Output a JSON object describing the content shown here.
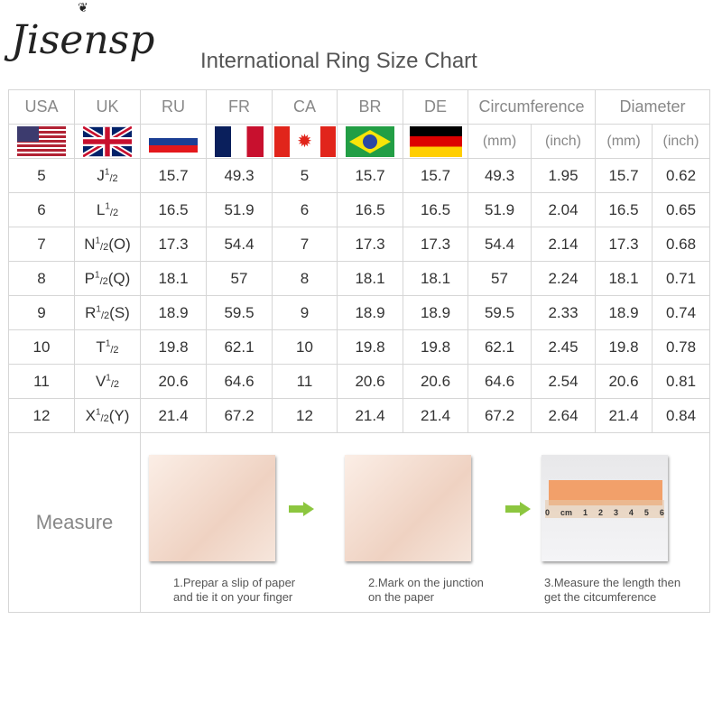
{
  "brand": "Jisensp",
  "title": "International Ring Size Chart",
  "headers": [
    "USA",
    "UK",
    "RU",
    "FR",
    "CA",
    "BR",
    "DE",
    "Circumference",
    "Diameter"
  ],
  "units": [
    "(mm)",
    "(inch)",
    "(mm)",
    "(inch)"
  ],
  "flags": [
    "usa-flag",
    "uk-flag",
    "russia-flag",
    "france-flag",
    "canada-flag",
    "brazil-flag",
    "germany-flag"
  ],
  "rows": [
    {
      "usa": "5",
      "uk": "J",
      "uk_sup": "1",
      "uk_sub": "/2",
      "uk_extra": "",
      "ru": "15.7",
      "fr": "49.3",
      "ca": "5",
      "br": "15.7",
      "de": "15.7",
      "circ_mm": "49.3",
      "circ_in": "1.95",
      "dia_mm": "15.7",
      "dia_in": "0.62"
    },
    {
      "usa": "6",
      "uk": "L",
      "uk_sup": "1",
      "uk_sub": "/2",
      "uk_extra": "",
      "ru": "16.5",
      "fr": "51.9",
      "ca": "6",
      "br": "16.5",
      "de": "16.5",
      "circ_mm": "51.9",
      "circ_in": "2.04",
      "dia_mm": "16.5",
      "dia_in": "0.65"
    },
    {
      "usa": "7",
      "uk": "N",
      "uk_sup": "1",
      "uk_sub": "/2",
      "uk_extra": "(O)",
      "ru": "17.3",
      "fr": "54.4",
      "ca": "7",
      "br": "17.3",
      "de": "17.3",
      "circ_mm": "54.4",
      "circ_in": "2.14",
      "dia_mm": "17.3",
      "dia_in": "0.68"
    },
    {
      "usa": "8",
      "uk": "P",
      "uk_sup": "1",
      "uk_sub": "/2",
      "uk_extra": "(Q)",
      "ru": "18.1",
      "fr": "57",
      "ca": "8",
      "br": "18.1",
      "de": "18.1",
      "circ_mm": "57",
      "circ_in": "2.24",
      "dia_mm": "18.1",
      "dia_in": "0.71"
    },
    {
      "usa": "9",
      "uk": "R",
      "uk_sup": "1",
      "uk_sub": "/2",
      "uk_extra": "(S)",
      "ru": "18.9",
      "fr": "59.5",
      "ca": "9",
      "br": "18.9",
      "de": "18.9",
      "circ_mm": "59.5",
      "circ_in": "2.33",
      "dia_mm": "18.9",
      "dia_in": "0.74"
    },
    {
      "usa": "10",
      "uk": "T",
      "uk_sup": "1",
      "uk_sub": "/2",
      "uk_extra": "",
      "ru": "19.8",
      "fr": "62.1",
      "ca": "10",
      "br": "19.8",
      "de": "19.8",
      "circ_mm": "62.1",
      "circ_in": "2.45",
      "dia_mm": "19.8",
      "dia_in": "0.78"
    },
    {
      "usa": "11",
      "uk": "V",
      "uk_sup": "1",
      "uk_sub": "/2",
      "uk_extra": "",
      "ru": "20.6",
      "fr": "64.6",
      "ca": "11",
      "br": "20.6",
      "de": "20.6",
      "circ_mm": "64.6",
      "circ_in": "2.54",
      "dia_mm": "20.6",
      "dia_in": "0.81"
    },
    {
      "usa": "12",
      "uk": "X",
      "uk_sup": "1",
      "uk_sub": "/2",
      "uk_extra": "(Y)",
      "ru": "21.4",
      "fr": "67.2",
      "ca": "12",
      "br": "21.4",
      "de": "21.4",
      "circ_mm": "67.2",
      "circ_in": "2.64",
      "dia_mm": "21.4",
      "dia_in": "0.84"
    }
  ],
  "measure": {
    "label": "Measure",
    "ruler_marks": [
      "0",
      "cm",
      "1",
      "2",
      "3",
      "4",
      "5",
      "6"
    ],
    "steps": [
      {
        "line1": "1.Prepar a slip of paper",
        "line2": "and tie it on your finger"
      },
      {
        "line1": "2.Mark on the junction",
        "line2": "on the paper"
      },
      {
        "line1": "3.Measure the length then",
        "line2": "get the citcumference"
      }
    ]
  },
  "colors": {
    "arrow": "#8cc63f",
    "grid": "#d6d6d6",
    "header_text": "#888888"
  }
}
